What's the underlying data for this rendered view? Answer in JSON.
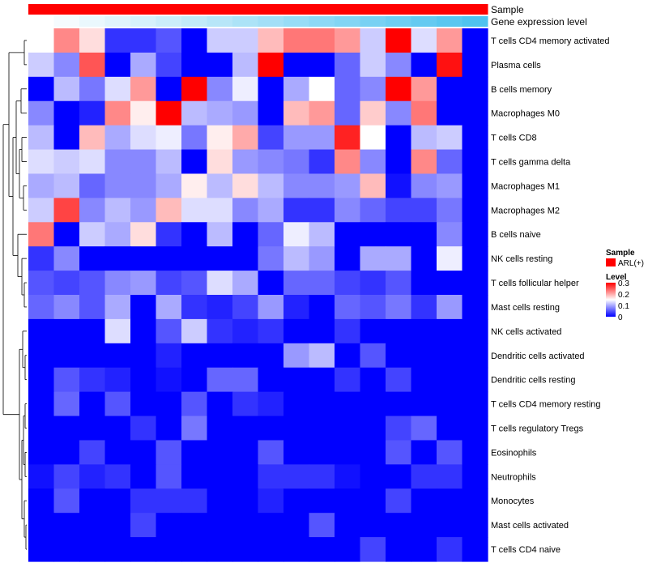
{
  "chart_data": {
    "type": "heatmap",
    "title": "",
    "annotations": [
      {
        "name": "Sample",
        "color_low": "#ff0000",
        "color_high": "#ff0000"
      },
      {
        "name": "Gene expression level",
        "color_low": "#ffffff",
        "color_high": "#4fc3ef"
      }
    ],
    "rows": [
      "T cells CD4 memory activated",
      "Plasma cells",
      "B cells memory",
      "Macrophages M0",
      "T cells CD8",
      "T cells gamma delta",
      "Macrophages M1",
      "Macrophages M2",
      "B cells naive",
      "NK cells resting",
      "T cells follicular helper",
      "Mast cells resting",
      "NK cells activated",
      "Dendritic cells activated",
      "Dendritic cells resting",
      "T cells CD4 memory resting",
      "T cells regulatory  Tregs",
      "Eosinophils",
      "Neutrophils",
      "Monocytes",
      "Mast cells activated",
      "T cells CD4 naive"
    ],
    "columns": 18,
    "values": [
      [
        0.15,
        0.22,
        0.17,
        0.03,
        0.03,
        0.05,
        0.0,
        0.12,
        0.12,
        0.19,
        0.23,
        0.23,
        0.21,
        0.12,
        0.3,
        0.13,
        0.21,
        0.0
      ],
      [
        0.12,
        0.08,
        0.25,
        0.0,
        0.1,
        0.04,
        0.0,
        0.0,
        0.11,
        0.3,
        0.0,
        0.0,
        0.06,
        0.12,
        0.08,
        0.0,
        0.29,
        0.0
      ],
      [
        0.0,
        0.11,
        0.07,
        0.13,
        0.21,
        0.0,
        0.3,
        0.08,
        0.14,
        0.0,
        0.1,
        0.15,
        0.06,
        0.08,
        0.3,
        0.21,
        0.0,
        0.0
      ],
      [
        0.08,
        0.0,
        0.02,
        0.22,
        0.16,
        0.3,
        0.11,
        0.1,
        0.09,
        0.0,
        0.19,
        0.21,
        0.06,
        0.18,
        0.08,
        0.23,
        0.0,
        0.0
      ],
      [
        0.11,
        0.0,
        0.19,
        0.1,
        0.13,
        0.14,
        0.07,
        0.16,
        0.2,
        0.04,
        0.09,
        0.09,
        0.28,
        0.15,
        0.0,
        0.11,
        0.12,
        0.0
      ],
      [
        0.13,
        0.12,
        0.13,
        0.08,
        0.08,
        0.11,
        0.0,
        0.17,
        0.09,
        0.08,
        0.07,
        0.03,
        0.22,
        0.08,
        0.0,
        0.22,
        0.06,
        0.0
      ],
      [
        0.1,
        0.11,
        0.06,
        0.08,
        0.08,
        0.1,
        0.16,
        0.11,
        0.17,
        0.11,
        0.08,
        0.08,
        0.09,
        0.19,
        0.01,
        0.08,
        0.09,
        0.0
      ],
      [
        0.12,
        0.26,
        0.08,
        0.11,
        0.09,
        0.19,
        0.13,
        0.13,
        0.08,
        0.1,
        0.03,
        0.03,
        0.08,
        0.06,
        0.04,
        0.04,
        0.07,
        0.0
      ],
      [
        0.23,
        0.0,
        0.12,
        0.1,
        0.17,
        0.03,
        0.0,
        0.11,
        0.0,
        0.06,
        0.14,
        0.11,
        0.0,
        0.0,
        0.0,
        0.0,
        0.08,
        0.0
      ],
      [
        0.03,
        0.08,
        0.0,
        0.0,
        0.0,
        0.0,
        0.0,
        0.0,
        0.0,
        0.07,
        0.11,
        0.09,
        0.0,
        0.1,
        0.1,
        0.0,
        0.14,
        0.0
      ],
      [
        0.05,
        0.04,
        0.05,
        0.08,
        0.09,
        0.04,
        0.05,
        0.13,
        0.1,
        0.0,
        0.06,
        0.06,
        0.04,
        0.03,
        0.05,
        0.0,
        0.0,
        0.0
      ],
      [
        0.06,
        0.08,
        0.05,
        0.1,
        0.0,
        0.1,
        0.03,
        0.02,
        0.04,
        0.09,
        0.02,
        0.0,
        0.06,
        0.05,
        0.07,
        0.03,
        0.09,
        0.0
      ],
      [
        0.0,
        0.0,
        0.0,
        0.13,
        0.0,
        0.05,
        0.12,
        0.03,
        0.02,
        0.03,
        0.0,
        0.0,
        0.03,
        0.0,
        0.0,
        0.0,
        0.0,
        0.0
      ],
      [
        0.0,
        0.0,
        0.0,
        0.0,
        0.0,
        0.02,
        0.0,
        0.0,
        0.0,
        0.0,
        0.09,
        0.11,
        0.0,
        0.05,
        0.0,
        0.0,
        0.0,
        0.0
      ],
      [
        0.0,
        0.05,
        0.03,
        0.02,
        0.0,
        0.01,
        0.0,
        0.06,
        0.06,
        0.0,
        0.0,
        0.0,
        0.03,
        0.0,
        0.04,
        0.0,
        0.0,
        0.0
      ],
      [
        0.0,
        0.06,
        0.0,
        0.05,
        0.0,
        0.0,
        0.05,
        0.0,
        0.03,
        0.02,
        0.0,
        0.0,
        0.0,
        0.0,
        0.0,
        0.0,
        0.0,
        0.0
      ],
      [
        0.0,
        0.0,
        0.0,
        0.0,
        0.03,
        0.0,
        0.07,
        0.0,
        0.0,
        0.0,
        0.0,
        0.0,
        0.0,
        0.0,
        0.04,
        0.06,
        0.0,
        0.0
      ],
      [
        0.0,
        0.0,
        0.04,
        0.0,
        0.0,
        0.05,
        0.0,
        0.0,
        0.0,
        0.05,
        0.0,
        0.0,
        0.0,
        0.0,
        0.05,
        0.0,
        0.05,
        0.0
      ],
      [
        0.01,
        0.04,
        0.02,
        0.03,
        0.0,
        0.05,
        0.0,
        0.0,
        0.0,
        0.03,
        0.03,
        0.03,
        0.01,
        0.0,
        0.0,
        0.03,
        0.03,
        0.0
      ],
      [
        0.0,
        0.05,
        0.0,
        0.0,
        0.03,
        0.03,
        0.03,
        0.0,
        0.0,
        0.02,
        0.0,
        0.0,
        0.0,
        0.0,
        0.04,
        0.0,
        0.0,
        0.0
      ],
      [
        0.0,
        0.0,
        0.0,
        0.0,
        0.04,
        0.0,
        0.0,
        0.0,
        0.0,
        0.0,
        0.0,
        0.05,
        0.0,
        0.0,
        0.0,
        0.0,
        0.0,
        0.0
      ],
      [
        0.0,
        0.0,
        0.0,
        0.0,
        0.0,
        0.0,
        0.0,
        0.0,
        0.0,
        0.0,
        0.0,
        0.0,
        0.0,
        0.04,
        0.0,
        0.0,
        0.03,
        0.0
      ]
    ],
    "color_scale": {
      "low": "#0000ff",
      "mid": "#ffffff",
      "high": "#ff0000",
      "range": [
        0,
        0.3
      ]
    },
    "legend": {
      "sample_title": "Sample",
      "sample_entry": "ARL(+)",
      "sample_color": "#ff0000",
      "level_title": "Level",
      "level_ticks": [
        0.3,
        0.2,
        0.1,
        0
      ]
    }
  }
}
